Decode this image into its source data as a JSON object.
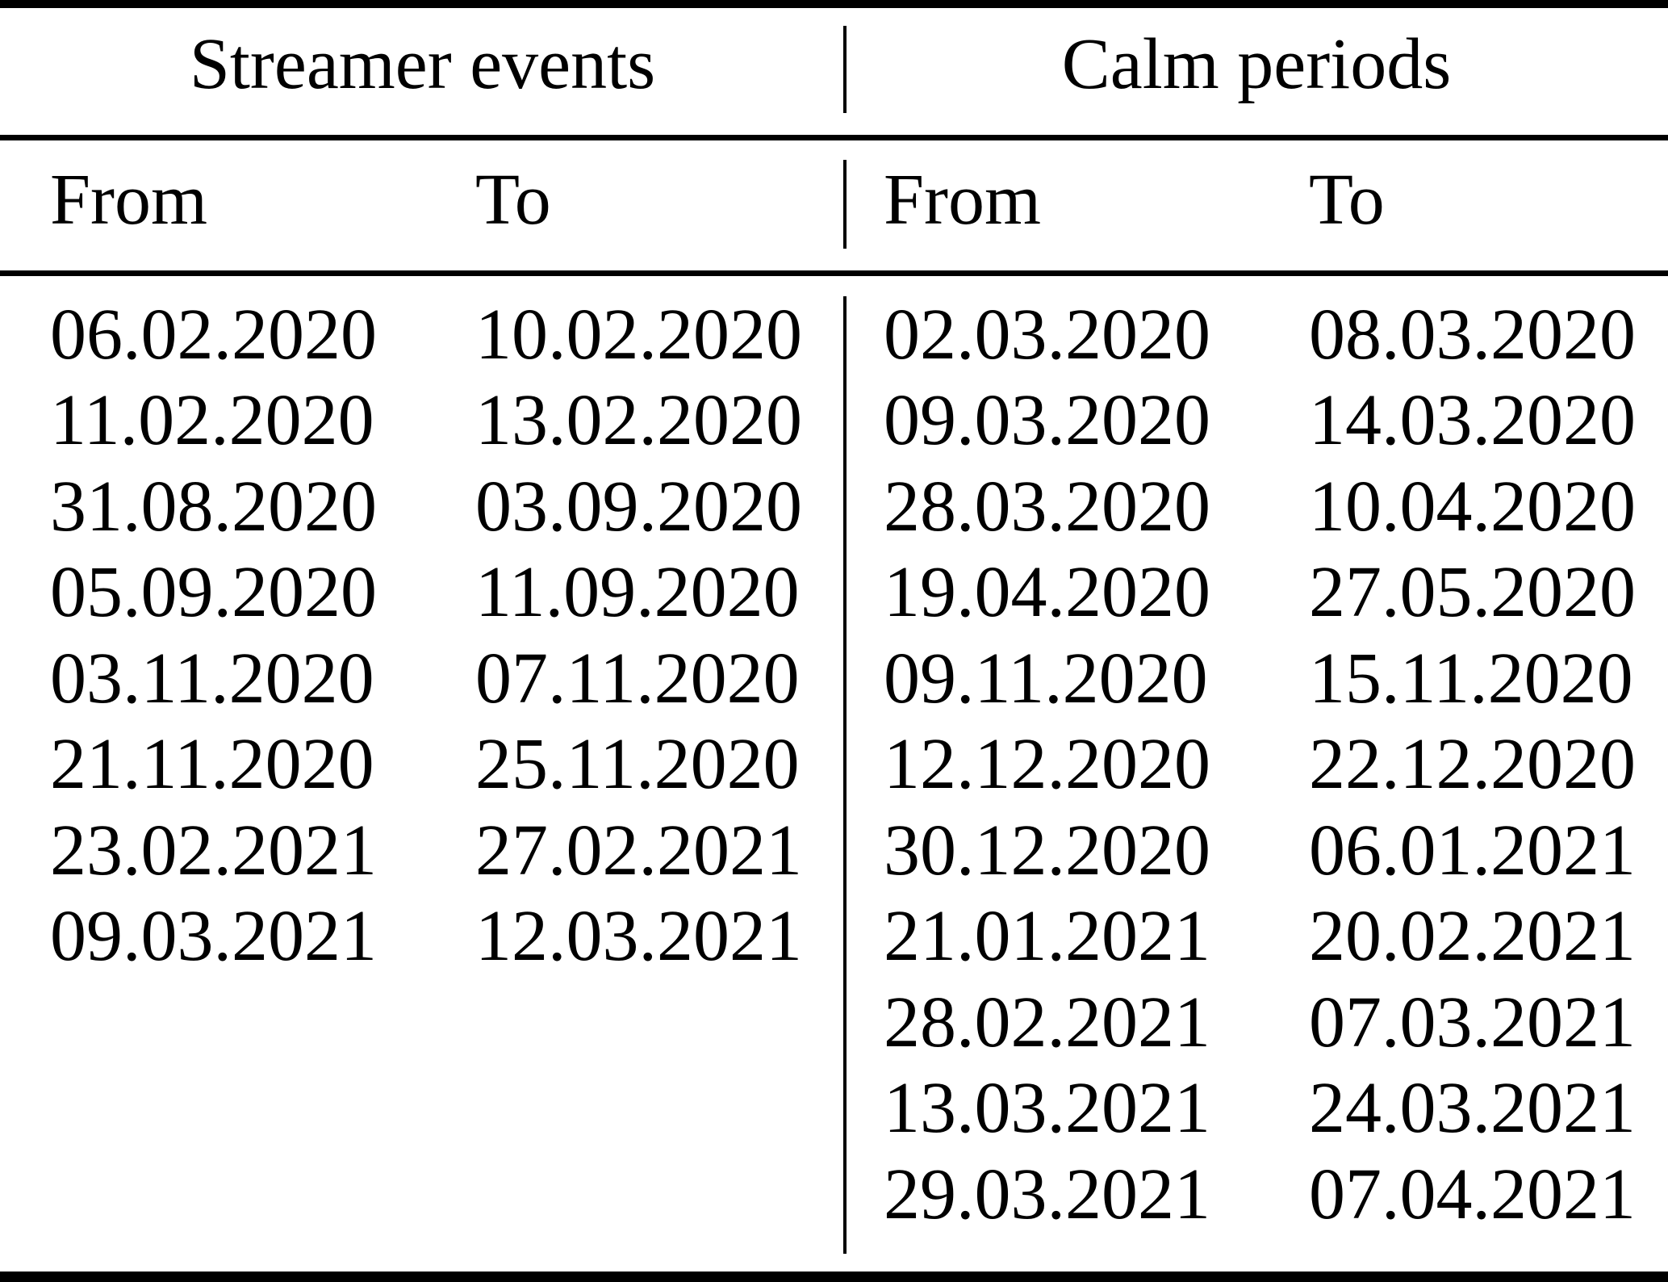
{
  "table": {
    "groups": [
      {
        "title": "Streamer events",
        "columns": [
          "From",
          "To"
        ],
        "rows": [
          [
            "06.02.2020",
            "10.02.2020"
          ],
          [
            "11.02.2020",
            "13.02.2020"
          ],
          [
            "31.08.2020",
            "03.09.2020"
          ],
          [
            "05.09.2020",
            "11.09.2020"
          ],
          [
            "03.11.2020",
            "07.11.2020"
          ],
          [
            "21.11.2020",
            "25.11.2020"
          ],
          [
            "23.02.2021",
            "27.02.2021"
          ],
          [
            "09.03.2021",
            "12.03.2021"
          ]
        ]
      },
      {
        "title": "Calm periods",
        "columns": [
          "From",
          "To"
        ],
        "rows": [
          [
            "02.03.2020",
            "08.03.2020"
          ],
          [
            "09.03.2020",
            "14.03.2020"
          ],
          [
            "28.03.2020",
            "10.04.2020"
          ],
          [
            "19.04.2020",
            "27.05.2020"
          ],
          [
            "09.11.2020",
            "15.11.2020"
          ],
          [
            "12.12.2020",
            "22.12.2020"
          ],
          [
            "30.12.2020",
            "06.01.2021"
          ],
          [
            "21.01.2021",
            "20.02.2021"
          ],
          [
            "28.02.2021",
            "07.03.2021"
          ],
          [
            "13.03.2021",
            "24.03.2021"
          ],
          [
            "29.03.2021",
            "07.04.2021"
          ]
        ]
      }
    ]
  },
  "colors": {
    "ink": "#000000",
    "paper": "#ffffff"
  }
}
